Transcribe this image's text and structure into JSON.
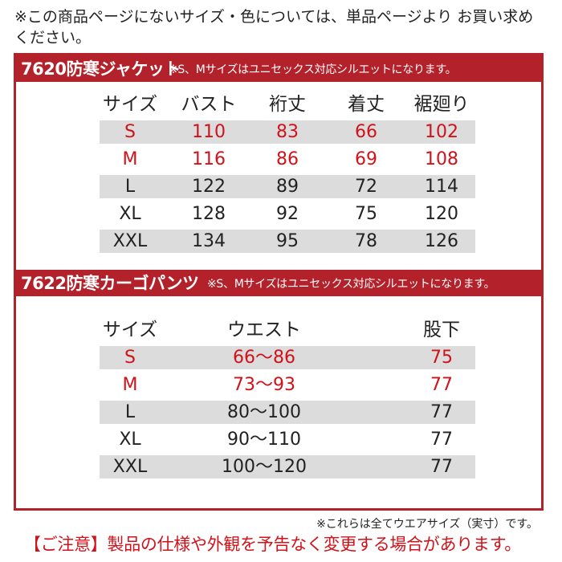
{
  "top_note": "※この商品ページにないサイズ・色については、単品ページより お買い求めください。",
  "jacket": {
    "title": "7620防寒ジャケット",
    "note": "※S、Mサイズはユニセックス対応シルエットになります。",
    "headers": [
      "サイズ",
      "バスト",
      "裄丈",
      "着丈",
      "裾廻り"
    ],
    "rows": [
      {
        "size": "S",
        "values": [
          "110",
          "83",
          "66",
          "102"
        ]
      },
      {
        "size": "M",
        "values": [
          "116",
          "86",
          "69",
          "108"
        ]
      },
      {
        "size": "L",
        "values": [
          "122",
          "89",
          "72",
          "114"
        ]
      },
      {
        "size": "XL",
        "values": [
          "128",
          "92",
          "75",
          "120"
        ]
      },
      {
        "size": "XXL",
        "values": [
          "134",
          "95",
          "78",
          "126"
        ]
      }
    ]
  },
  "pants": {
    "title": "7622防寒カーゴパンツ",
    "note": "※S、Mサイズはユニセックス対応シルエットになります。",
    "headers": [
      "サイズ",
      "ウエスト",
      "股下"
    ],
    "rows": [
      {
        "size": "S",
        "values": [
          "66〜86",
          "75"
        ]
      },
      {
        "size": "M",
        "values": [
          "73〜93",
          "77"
        ]
      },
      {
        "size": "L",
        "values": [
          "80〜100",
          "77"
        ]
      },
      {
        "size": "XL",
        "values": [
          "90〜110",
          "77"
        ]
      },
      {
        "size": "XXL",
        "values": [
          "100〜120",
          "77"
        ]
      }
    ]
  },
  "bottom_note": "※これらは全てウエアサイズ（実寸）です。",
  "caution": "【ご注意】製品の仕様や外観を予告なく変更する場合があります。",
  "colors": {
    "accent": "#b3212b",
    "highlight_text": "#d0121b",
    "row_gray": "#dcdcdc"
  }
}
